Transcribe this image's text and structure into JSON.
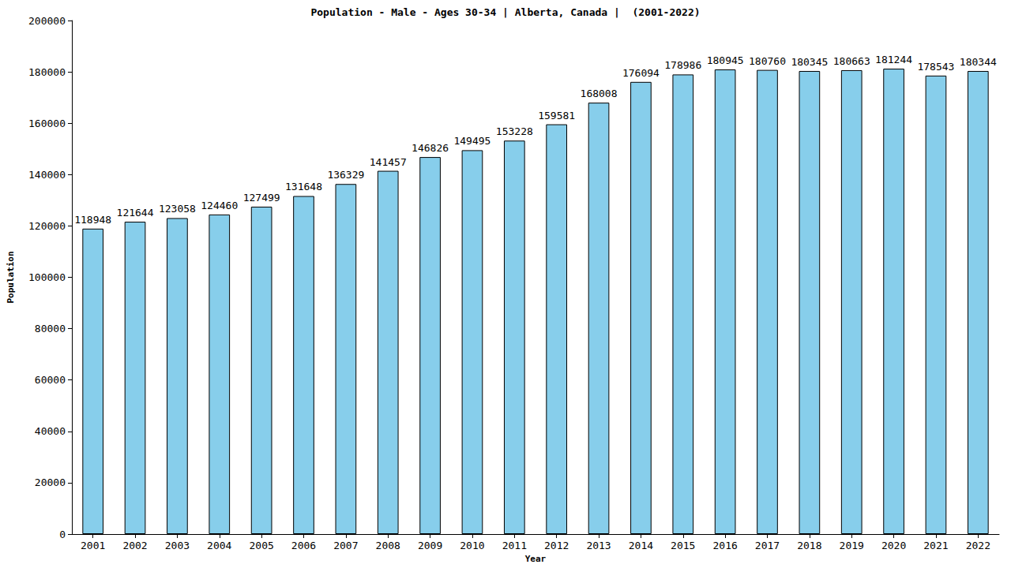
{
  "chart_data": {
    "type": "bar",
    "title": "Population - Male - Ages 30-34 | Alberta, Canada |  (2001-2022)",
    "x_label": "Year",
    "y_label": "Population",
    "categories": [
      "2001",
      "2002",
      "2003",
      "2004",
      "2005",
      "2006",
      "2007",
      "2008",
      "2009",
      "2010",
      "2011",
      "2012",
      "2013",
      "2014",
      "2015",
      "2016",
      "2017",
      "2018",
      "2019",
      "2020",
      "2021",
      "2022"
    ],
    "values": [
      118948,
      121644,
      123058,
      124460,
      127499,
      131648,
      136329,
      141457,
      146826,
      149495,
      153228,
      159581,
      168008,
      176094,
      178986,
      180945,
      180760,
      180345,
      180663,
      181244,
      178543,
      180344
    ],
    "color": "#87ceeb",
    "ylim": [
      0,
      200000
    ],
    "yticks": [
      0,
      20000,
      40000,
      60000,
      80000,
      100000,
      120000,
      140000,
      160000,
      180000,
      200000
    ],
    "grid": false,
    "data_labels": true
  }
}
